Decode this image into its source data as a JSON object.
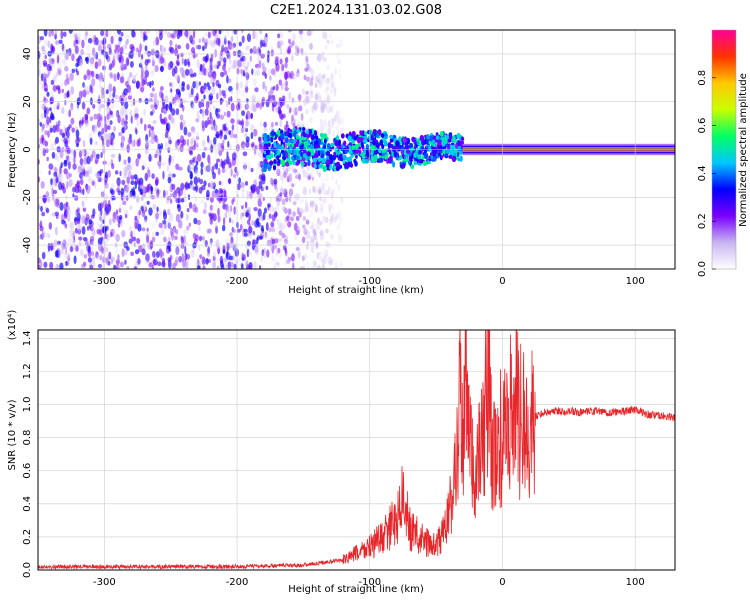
{
  "title": "C2E1.2024.131.03.02.G08",
  "chart_data": [
    {
      "type": "heatmap",
      "xlabel": "Height of straight line (km)",
      "ylabel": "Frequency (Hz)",
      "xlim": [
        -350,
        130
      ],
      "ylim": [
        -50,
        50
      ],
      "x_ticks": [
        -300,
        -200,
        -100,
        0,
        100
      ],
      "y_ticks": [
        -40,
        -20,
        0,
        20,
        40
      ],
      "colorbar": {
        "label": "Normalized spectral amplitude",
        "range": [
          0.0,
          1.0
        ],
        "ticks": [
          "0.0",
          "0.2",
          "0.4",
          "0.6",
          "0.8"
        ],
        "colors": [
          "#ffffff",
          "#c8b4f0",
          "#7a00ff",
          "#0000ff",
          "#00c8ff",
          "#00ff64",
          "#c8ff00",
          "#ffc800",
          "#ff3200",
          "#ff0096"
        ]
      },
      "features": [
        {
          "x_range": [
            -350,
            -180
          ],
          "freq_range": [
            -50,
            50
          ],
          "amplitude": 0.1,
          "description_level": "diffuse"
        },
        {
          "x_range": [
            -180,
            -30
          ],
          "freq_range": [
            -10,
            10
          ],
          "amplitude": 0.35
        },
        {
          "x_range": [
            -30,
            130
          ],
          "freq_range": [
            -1,
            1
          ],
          "amplitude": 0.95
        }
      ],
      "grid": true
    },
    {
      "type": "line",
      "xlabel": "Height of straight line (km)",
      "ylabel": "SNR (10 * v/v)",
      "y_multiplier": "(x10⁴)",
      "xlim": [
        -350,
        130
      ],
      "ylim": [
        0.0,
        1.45
      ],
      "x_ticks": [
        -300,
        -200,
        -100,
        0,
        100
      ],
      "y_ticks": [
        "0.0",
        "0.2",
        "0.4",
        "0.6",
        "0.8",
        "1.0",
        "1.2",
        "1.4"
      ],
      "grid": true,
      "color": "#e8262a",
      "series": [
        {
          "x": [
            -350,
            -300,
            -250,
            -200,
            -150,
            -120,
            -110,
            -100,
            -90,
            -80,
            -75,
            -70,
            -60,
            -50,
            -45,
            -40,
            -35,
            -32,
            -30,
            -28,
            -25,
            -20,
            -15,
            -12,
            -10,
            -8,
            -5,
            0,
            5,
            10,
            12,
            15,
            20,
            30,
            40,
            50,
            60,
            70,
            80,
            90,
            100,
            110,
            120,
            130
          ],
          "values": [
            0.02,
            0.02,
            0.02,
            0.02,
            0.03,
            0.06,
            0.1,
            0.14,
            0.2,
            0.3,
            0.45,
            0.25,
            0.18,
            0.14,
            0.22,
            0.35,
            0.6,
            1.2,
            0.7,
            1.05,
            0.75,
            0.55,
            0.8,
            1.0,
            1.45,
            0.6,
            0.75,
            0.8,
            0.85,
            1.2,
            0.9,
            0.88,
            0.9,
            0.95,
            0.96,
            0.96,
            0.95,
            0.96,
            0.95,
            0.96,
            0.97,
            0.94,
            0.93,
            0.92
          ]
        }
      ]
    }
  ]
}
